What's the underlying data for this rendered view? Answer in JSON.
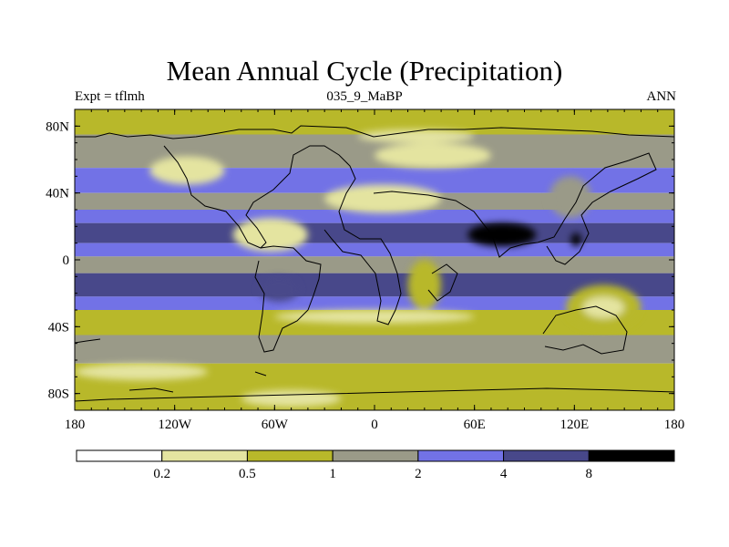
{
  "title": "Mean Annual Cycle (Precipitation)",
  "subtitle_left": "Expt = tflmh",
  "subtitle_center": "035_9_MaBP",
  "subtitle_right": "ANN",
  "axes": {
    "lon_ticks": [
      {
        "value": -180,
        "label": "180"
      },
      {
        "value": -120,
        "label": "120W"
      },
      {
        "value": -60,
        "label": "60W"
      },
      {
        "value": 0,
        "label": "0"
      },
      {
        "value": 60,
        "label": "60E"
      },
      {
        "value": 120,
        "label": "120E"
      },
      {
        "value": 180,
        "label": "180"
      }
    ],
    "lat_ticks": [
      {
        "value": 80,
        "label": "80N"
      },
      {
        "value": 40,
        "label": "40N"
      },
      {
        "value": 0,
        "label": "0"
      },
      {
        "value": -40,
        "label": "40S"
      },
      {
        "value": -80,
        "label": "80S"
      }
    ],
    "lon_range": [
      -180,
      180
    ],
    "lat_range": [
      -90,
      90
    ]
  },
  "colorbar": {
    "colors": [
      "#ffffff",
      "#e4e4a0",
      "#b8b82a",
      "#9a9a88",
      "#7272e6",
      "#48488a",
      "#000000"
    ],
    "labels": [
      "0.2",
      "0.5",
      "1",
      "2",
      "4",
      "8"
    ]
  },
  "chart_data": {
    "type": "heatmap",
    "title": "Mean Annual Cycle (Precipitation)",
    "variable": "Precipitation",
    "levels": [
      0.2,
      0.5,
      1,
      2,
      4,
      8
    ],
    "xlabel": "",
    "ylabel": "",
    "xlim": [
      -180,
      180
    ],
    "ylim": [
      -90,
      90
    ],
    "zonal_bands": [
      {
        "lat": [
          75,
          90
        ],
        "class": 2
      },
      {
        "lat": [
          55,
          75
        ],
        "class": 3
      },
      {
        "lat": [
          40,
          55
        ],
        "class": 4
      },
      {
        "lat": [
          30,
          40
        ],
        "class": 3
      },
      {
        "lat": [
          22,
          30
        ],
        "class": 4
      },
      {
        "lat": [
          10,
          22
        ],
        "class": 5
      },
      {
        "lat": [
          2,
          10
        ],
        "class": 4
      },
      {
        "lat": [
          -8,
          2
        ],
        "class": 3
      },
      {
        "lat": [
          -22,
          -8
        ],
        "class": 5
      },
      {
        "lat": [
          -30,
          -22
        ],
        "class": 4
      },
      {
        "lat": [
          -45,
          -30
        ],
        "class": 2
      },
      {
        "lat": [
          -62,
          -45
        ],
        "class": 3
      },
      {
        "lat": [
          -75,
          -62
        ],
        "class": 2
      },
      {
        "lat": [
          -90,
          -75
        ],
        "class": 2
      }
    ],
    "patches": [
      {
        "class": 6,
        "lon": [
          56,
          97
        ],
        "lat": [
          8,
          22
        ]
      },
      {
        "class": 6,
        "lon": [
          118,
          124
        ],
        "lat": [
          8,
          16
        ]
      },
      {
        "class": 0,
        "lon": [
          -75,
          -58
        ],
        "lat": [
          8,
          18
        ]
      },
      {
        "class": 1,
        "lon": [
          -85,
          -40
        ],
        "lat": [
          5,
          25
        ]
      },
      {
        "class": 0,
        "lon": [
          -18,
          10
        ],
        "lat": [
          32,
          38
        ]
      },
      {
        "class": 1,
        "lon": [
          -30,
          40
        ],
        "lat": [
          28,
          45
        ]
      },
      {
        "class": 0,
        "lon": [
          -120,
          -95
        ],
        "lat": [
          50,
          58
        ]
      },
      {
        "class": 1,
        "lon": [
          -135,
          -90
        ],
        "lat": [
          45,
          62
        ]
      },
      {
        "class": 0,
        "lon": [
          15,
          55
        ],
        "lat": [
          58,
          64
        ]
      },
      {
        "class": 1,
        "lon": [
          0,
          70
        ],
        "lat": [
          55,
          70
        ]
      },
      {
        "class": 1,
        "lon": [
          -10,
          60
        ],
        "lat": [
          70,
          78
        ]
      },
      {
        "class": 1,
        "lon": [
          -60,
          60
        ],
        "lat": [
          -38,
          -30
        ]
      },
      {
        "class": 0,
        "lon": [
          -160,
          -120
        ],
        "lat": [
          -70,
          -64
        ]
      },
      {
        "class": 1,
        "lon": [
          -180,
          -100
        ],
        "lat": [
          -72,
          -62
        ]
      },
      {
        "class": 1,
        "lon": [
          -80,
          -20
        ],
        "lat": [
          -88,
          -78
        ]
      },
      {
        "class": 3,
        "lon": [
          105,
          130
        ],
        "lat": [
          25,
          50
        ]
      },
      {
        "class": 2,
        "lon": [
          115,
          160
        ],
        "lat": [
          -42,
          -15
        ]
      },
      {
        "class": 1,
        "lon": [
          125,
          150
        ],
        "lat": [
          -35,
          -22
        ]
      },
      {
        "class": 2,
        "lon": [
          20,
          40
        ],
        "lat": [
          -30,
          0
        ]
      },
      {
        "class": 5,
        "lon": [
          -70,
          -45
        ],
        "lat": [
          -25,
          -10
        ]
      }
    ]
  }
}
